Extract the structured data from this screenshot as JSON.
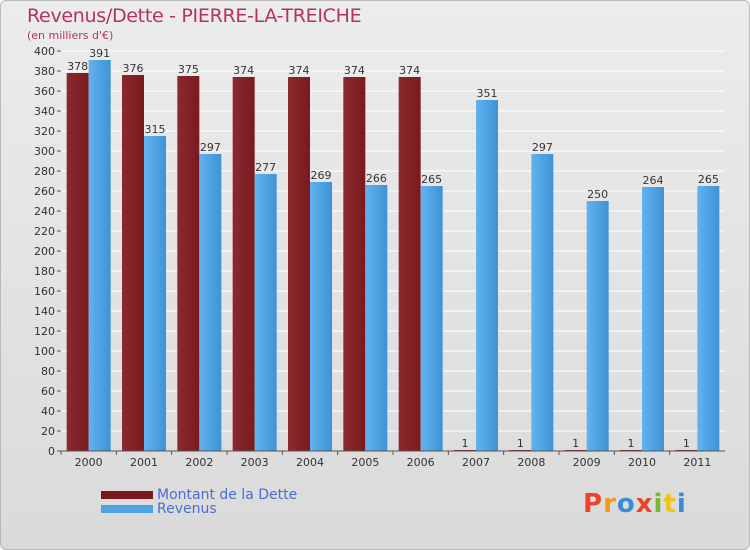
{
  "header": {
    "title": "Revenus/Dette - PIERRE-LA-TREICHE",
    "unit": "(en milliers d'€)"
  },
  "colors": {
    "debt": "#7a1a1e",
    "revenue": "#4ea3e3"
  },
  "legend": {
    "debt_label": "Montant de la Dette",
    "revenue_label": "Revenus"
  },
  "logo": {
    "text": "Proxiti"
  },
  "chart_data": {
    "type": "bar",
    "categories": [
      "2000",
      "2001",
      "2002",
      "2003",
      "2004",
      "2005",
      "2006",
      "2007",
      "2008",
      "2009",
      "2010",
      "2011"
    ],
    "series": [
      {
        "name": "Montant de la Dette",
        "values": [
          378,
          376,
          375,
          374,
          374,
          374,
          374,
          1,
          1,
          1,
          1,
          1
        ]
      },
      {
        "name": "Revenus",
        "values": [
          391,
          315,
          297,
          277,
          269,
          266,
          265,
          351,
          297,
          250,
          264,
          265
        ]
      }
    ],
    "title": "Revenus/Dette - PIERRE-LA-TREICHE",
    "ylabel": "(en milliers d'€)",
    "ylim": [
      0,
      400
    ],
    "yticks": [
      0,
      20,
      40,
      60,
      80,
      100,
      120,
      140,
      160,
      180,
      200,
      220,
      240,
      260,
      280,
      300,
      320,
      340,
      360,
      380,
      400
    ],
    "grid": true,
    "legend_position": "bottom-left"
  }
}
